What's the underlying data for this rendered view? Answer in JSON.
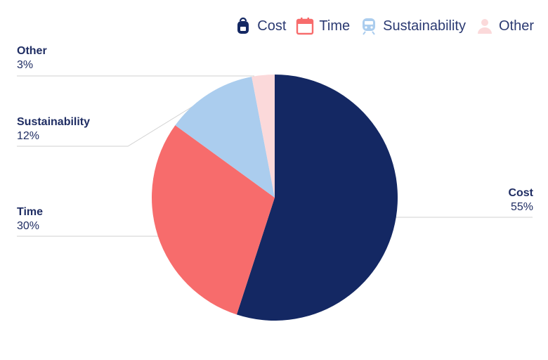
{
  "chart_data": {
    "type": "pie",
    "categories": [
      "Cost",
      "Time",
      "Sustainability",
      "Other"
    ],
    "values": [
      55,
      30,
      12,
      3
    ],
    "value_labels": [
      "55%",
      "30%",
      "12%",
      "3%"
    ],
    "colors": [
      "#142863",
      "#f76c6c",
      "#abcdee",
      "#fbd9da"
    ],
    "legend_position": "top-right",
    "legend_icons": [
      "backpack-icon",
      "calendar-icon",
      "train-icon",
      "person-icon"
    ]
  }
}
